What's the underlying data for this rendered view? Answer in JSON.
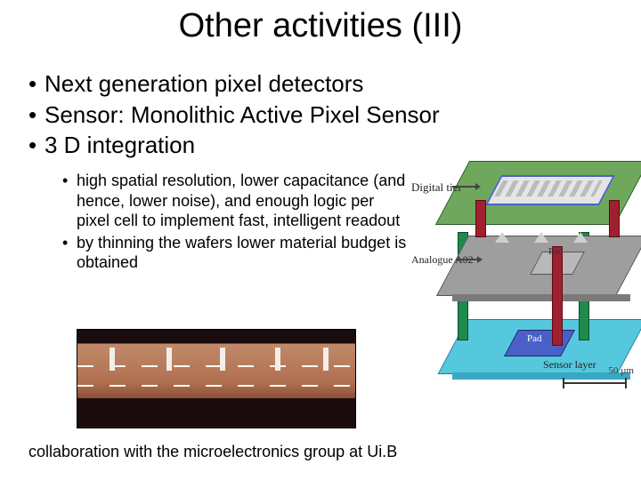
{
  "title": "Other activities (III)",
  "bullets": {
    "main": [
      "Next generation pixel detectors",
      "Sensor: Monolithic Active Pixel Sensor",
      "3 D integration"
    ],
    "sub": [
      "high spatial resolution, lower capacitance (and hence, lower noise), and enough logic per pixel cell to implement fast, intelligent readout",
      "by thinning the wafers lower material budget is obtained"
    ]
  },
  "footer": "collaboration with the microelectronics group at Ui.B",
  "diagram": {
    "labels": {
      "digital": "Digital tier",
      "analog": "Analogue A02",
      "pad": "Pad",
      "sensor": "Sensor layer",
      "scale": "50 µm"
    },
    "colors": {
      "top": "#6fa75c",
      "mid": "#9e9e9e",
      "bot": "#56c8de",
      "pad_bot": "#4a60c8",
      "pillar_red": "#a02030",
      "pillar_green": "#1f8a4c"
    }
  }
}
